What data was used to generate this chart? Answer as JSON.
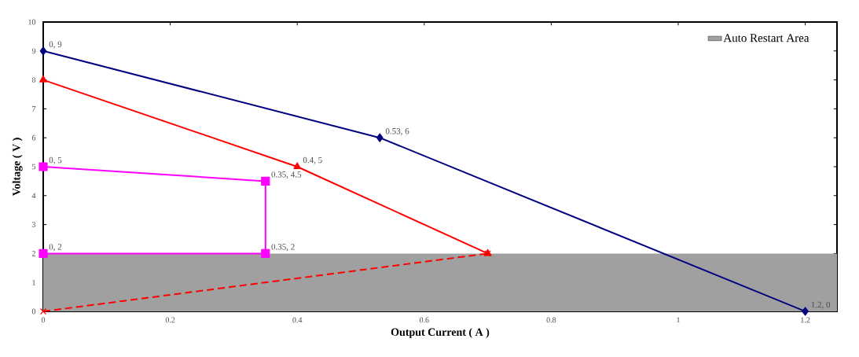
{
  "chart_data": {
    "type": "line",
    "xlabel": "Output Current ( A )",
    "ylabel": "Voltage ( V )",
    "xlim": [
      0,
      1.25
    ],
    "ylim": [
      0,
      10
    ],
    "xticks": [
      0,
      0.2,
      0.4,
      0.6,
      0.8,
      1,
      1.2
    ],
    "yticks": [
      0,
      1,
      2,
      3,
      4,
      5,
      6,
      7,
      8,
      9,
      10
    ],
    "grid": false,
    "legend": "top right",
    "series": [
      {
        "x": [
          0,
          0.53,
          1.2
        ],
        "values": [
          9,
          6,
          0
        ],
        "color": "#000080",
        "marker": "diamond",
        "line_style": "solid"
      },
      {
        "x": [
          0,
          0.4,
          0.7
        ],
        "values": [
          8,
          5,
          2
        ],
        "color": "#ff0000",
        "marker": "triangle",
        "line_style": "solid"
      },
      {
        "x": [
          0,
          0.35,
          0.35,
          0
        ],
        "values": [
          5,
          4.5,
          2,
          2
        ],
        "color": "#ff00ff",
        "marker": "square",
        "line_style": "solid"
      },
      {
        "x": [
          0,
          0.7
        ],
        "values": [
          0,
          2
        ],
        "color": "#ff0000",
        "marker": "cross",
        "line_style": "dashed"
      }
    ],
    "bands": [
      {
        "axis": "y",
        "from": 0,
        "to": 2,
        "label": "Auto Restart Area",
        "color": "#a0a0a0"
      }
    ],
    "annotations": [
      {
        "text": "0, 9",
        "x": 0,
        "y": 9
      },
      {
        "text": "0.53, 6",
        "x": 0.53,
        "y": 6
      },
      {
        "text": "1.2, 0",
        "x": 1.2,
        "y": 0
      },
      {
        "text": "0.4, 5",
        "x": 0.4,
        "y": 5
      },
      {
        "text": "0, 5",
        "x": 0,
        "y": 5
      },
      {
        "text": "0.35, 4.5",
        "x": 0.35,
        "y": 4.5
      },
      {
        "text": "0, 2",
        "x": 0,
        "y": 2
      },
      {
        "text": "0.35, 2",
        "x": 0.35,
        "y": 2
      }
    ]
  }
}
